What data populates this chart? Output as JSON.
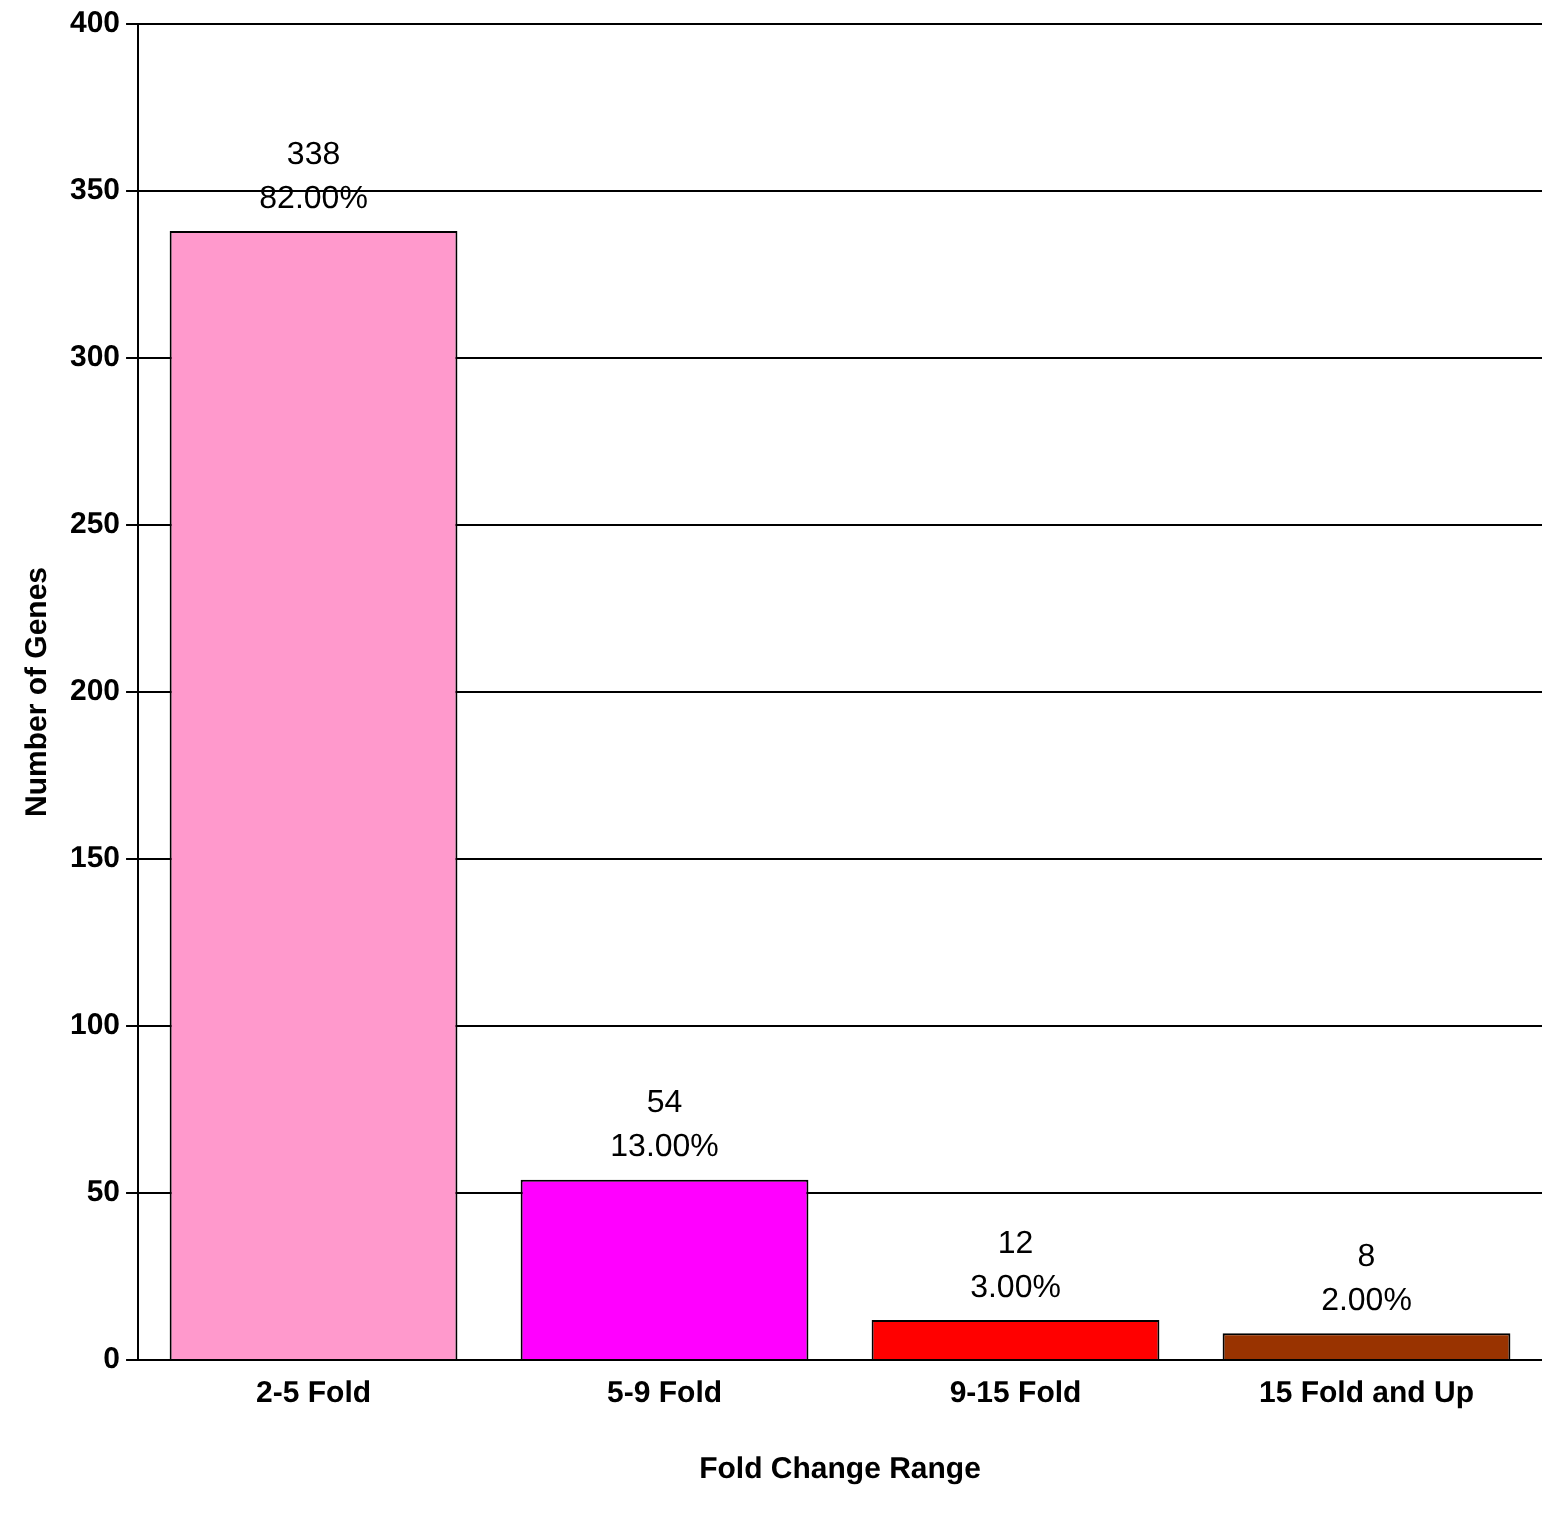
{
  "chart_data": {
    "type": "bar",
    "xlabel": "Fold Change Range",
    "ylabel": "Number of Genes",
    "categories": [
      "2-5 Fold",
      "5-9 Fold",
      "9-15 Fold",
      "15 Fold and Up"
    ],
    "values": [
      338,
      54,
      12,
      8
    ],
    "colors": [
      "#ff99cc",
      "#ff00ff",
      "#ff0000",
      "#993300"
    ],
    "value_labels": [
      "338\n82.00%",
      "54\n13.00%",
      "12\n3.00%",
      "8\n2.00%"
    ],
    "ylim": [
      0,
      400
    ],
    "yticks": [
      0,
      50,
      100,
      150,
      200,
      250,
      300,
      350,
      400
    ],
    "grid": "y",
    "legend": false
  }
}
